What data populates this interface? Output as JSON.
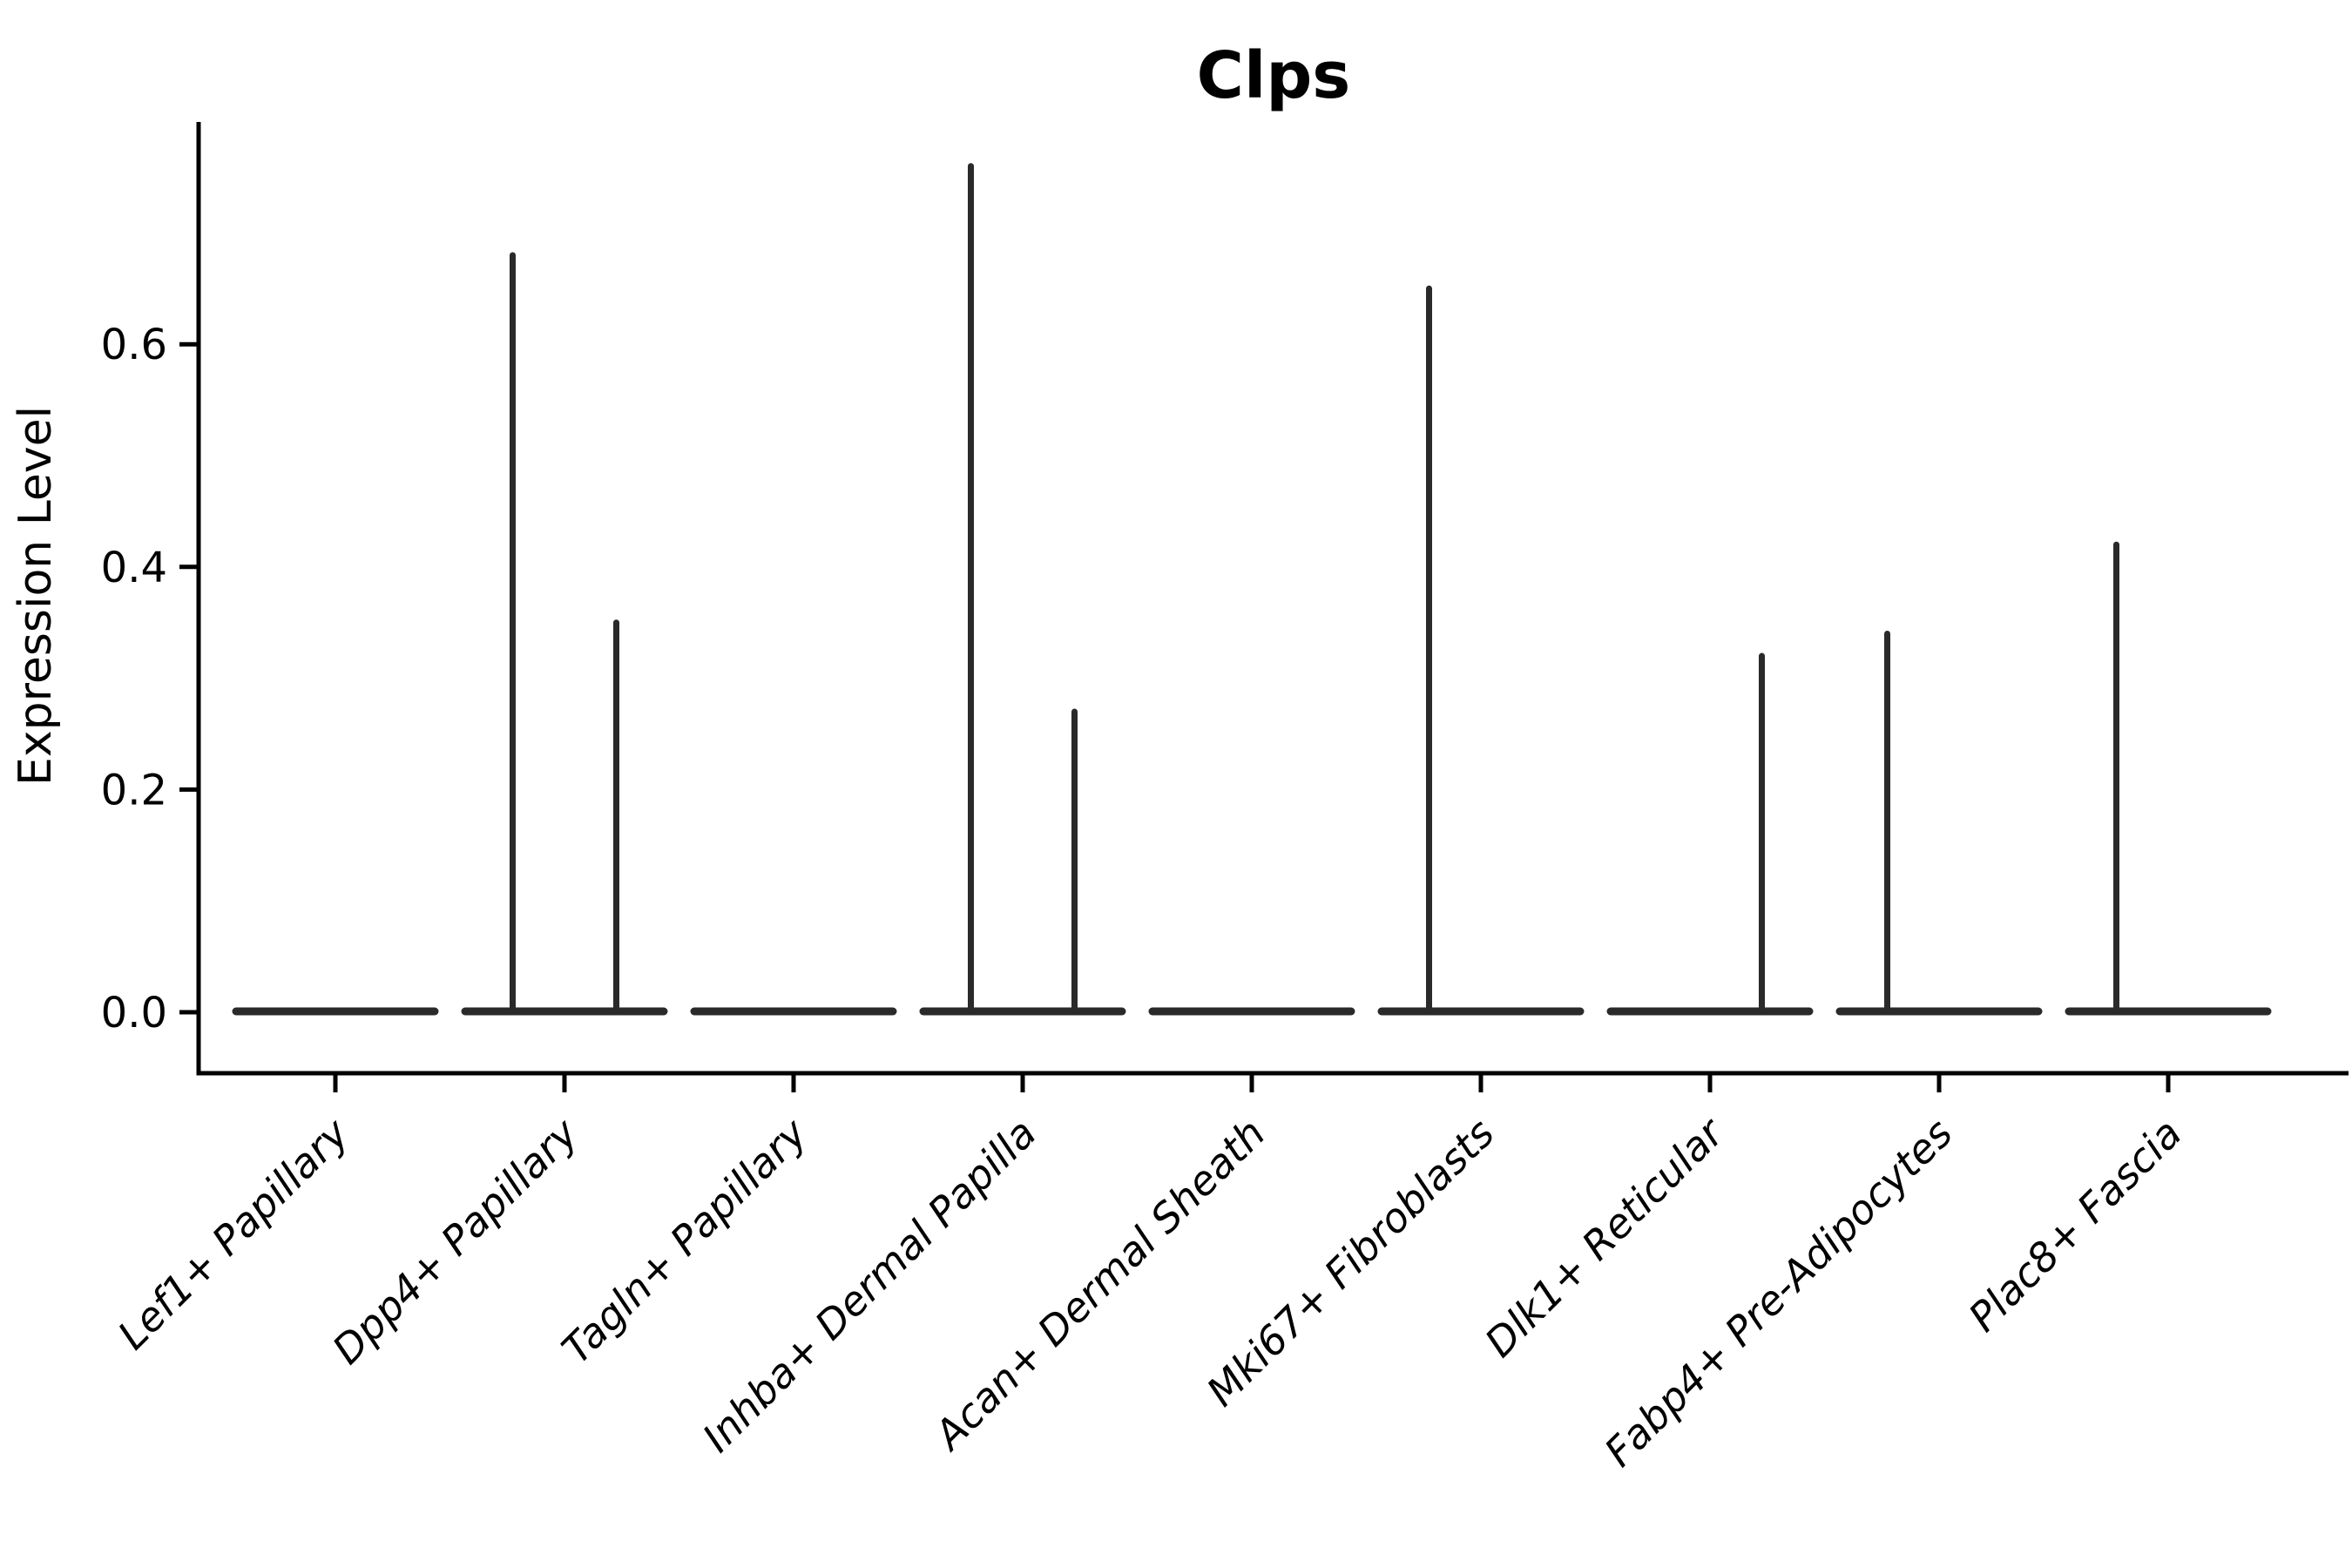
{
  "title": "Clps",
  "colors": {
    "background": "#ffffff",
    "axis_ink": "#000000",
    "violin_ink": "#2a2a2a"
  },
  "y_axis": {
    "label": "Expression Level",
    "tick_labels": [
      "0.0",
      "0.2",
      "0.4",
      "0.6"
    ],
    "tick_values": [
      0.0,
      0.2,
      0.4,
      0.6
    ]
  },
  "chart_data": {
    "type": "violin",
    "title": "Clps",
    "ylabel": "Expression Level",
    "xlabel": "",
    "ylim": [
      -0.05,
      0.8
    ],
    "grid": false,
    "legend": "none",
    "groups_per_category": 2,
    "baseline_value": 0.0,
    "description": "Violin plot of Clps expression per fibroblast subtype; two thin violins per category. Expression is ~0 for nearly all cells (flat violin body at 0) with rare positive cells forming a thin spike up to the group maximum.",
    "categories": [
      "Lef1+ Papillary",
      "Dpp4+ Papillary",
      "Tagln+ Papillary",
      "Inhba+ Dermal Papilla",
      "Acan+ Dermal Sheath",
      "Mki67+ Fibroblasts",
      "Dlk1+ Reticular",
      "Fabp4+ Pre-Adipocytes",
      "Plac8+ Fascia"
    ],
    "violins": [
      {
        "category": "Lef1+ Papillary",
        "group_max": [
          0.0,
          0.0
        ]
      },
      {
        "category": "Dpp4+ Papillary",
        "group_max": [
          0.68,
          0.35
        ]
      },
      {
        "category": "Tagln+ Papillary",
        "group_max": [
          0.0,
          0.0
        ]
      },
      {
        "category": "Inhba+ Dermal Papilla",
        "group_max": [
          0.76,
          0.27
        ]
      },
      {
        "category": "Acan+ Dermal Sheath",
        "group_max": [
          0.0,
          0.0
        ]
      },
      {
        "category": "Mki67+ Fibroblasts",
        "group_max": [
          0.65,
          0.0
        ]
      },
      {
        "category": "Dlk1+ Reticular",
        "group_max": [
          0.0,
          0.32
        ]
      },
      {
        "category": "Fabp4+ Pre-Adipocytes",
        "group_max": [
          0.34,
          0.0
        ]
      },
      {
        "category": "Plac8+ Fascia",
        "group_max": [
          0.42,
          0.0
        ]
      }
    ]
  }
}
